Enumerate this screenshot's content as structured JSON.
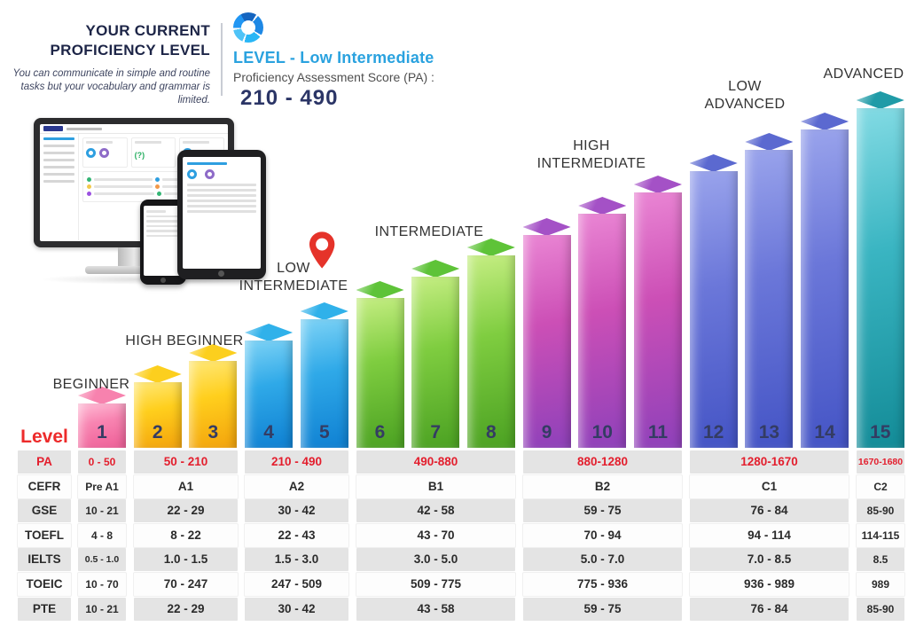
{
  "header": {
    "title_line1": "YOUR CURRENT",
    "title_line2": "PROFICIENCY LEVEL",
    "description": "You can communicate in simple and routine tasks but your vocabulary and grammar is limited.",
    "logo_icon": "donut-chart-icon",
    "level_label": "LEVEL - Low Intermediate",
    "score_label": "Proficiency Assessment Score (PA) :",
    "score_value": "210 - 490",
    "accent_blue": "#2aa2df",
    "score_navy": "#2b3566"
  },
  "chart_data": {
    "type": "bar",
    "title": "Proficiency level staircase, levels 1-15",
    "categories": [
      "1",
      "2",
      "3",
      "4",
      "5",
      "6",
      "7",
      "8",
      "9",
      "10",
      "11",
      "12",
      "13",
      "14",
      "15"
    ],
    "values": [
      1,
      2,
      3,
      4,
      5,
      6,
      7,
      8,
      9,
      10,
      11,
      12,
      13,
      14,
      15
    ],
    "ylabel": "",
    "xlabel": "Level",
    "legend": "none",
    "grid": false,
    "current_level_band": "LOW INTERMEDIATE",
    "marker_icon": "location-pin-icon",
    "marker_color": "#e5332a",
    "bands": [
      {
        "label_lines": [
          "BEGINNER"
        ],
        "levels": [
          1
        ],
        "pa_range": "0 - 50",
        "colors": {
          "l": "#ffbcd6",
          "m": "#f884b1",
          "d": "#ee5e97",
          "top": "#f782ae"
        }
      },
      {
        "label_lines": [
          "HIGH BEGINNER"
        ],
        "levels": [
          2,
          3
        ],
        "pa_range": "50 - 210",
        "colors": {
          "l": "#ffe878",
          "m": "#ffcf1d",
          "d": "#f3a30c",
          "top": "#fccf1e"
        }
      },
      {
        "label_lines": [
          "LOW",
          "INTERMEDIATE"
        ],
        "levels": [
          4,
          5
        ],
        "pa_range": "210 - 490",
        "marker": true,
        "colors": {
          "l": "#7ed3f6",
          "m": "#2fa9e8",
          "d": "#0f80d2",
          "top": "#30b1ea"
        }
      },
      {
        "label_lines": [
          "INTERMEDIATE"
        ],
        "levels": [
          6,
          7,
          8
        ],
        "pa_range": "490-880",
        "colors": {
          "l": "#c6ee83",
          "m": "#7fcd40",
          "d": "#4ba122",
          "top": "#5ec338"
        }
      },
      {
        "label_lines": [
          "HIGH",
          "INTERMEDIATE"
        ],
        "levels": [
          9,
          10,
          11
        ],
        "pa_range": "880-1280",
        "colors": {
          "l": "#ea86d4",
          "m": "#cc4fb6",
          "d": "#8e41ba",
          "top": "#a451c6"
        }
      },
      {
        "label_lines": [
          "LOW",
          "ADVANCED"
        ],
        "levels": [
          12,
          13,
          14
        ],
        "pa_range": "1280-1670",
        "colors": {
          "l": "#9aa4ec",
          "m": "#6b77d9",
          "d": "#4454c5",
          "top": "#5b69d0"
        }
      },
      {
        "label_lines": [
          "ADVANCED"
        ],
        "levels": [
          15
        ],
        "pa_range": "1670-1680",
        "colors": {
          "l": "#83dbe4",
          "m": "#3ab5c2",
          "d": "#138b97",
          "top": "#1f9ba7"
        }
      }
    ]
  },
  "table": {
    "level_label": "Level",
    "pa_color": "#e31e2d",
    "rows": [
      {
        "label": "PA",
        "red": true,
        "values": [
          "0 - 50",
          "50 - 210",
          "210 - 490",
          "490-880",
          "880-1280",
          "1280-1670",
          "1670-1680"
        ]
      },
      {
        "label": "CEFR",
        "values": [
          "Pre A1",
          "A1",
          "A2",
          "B1",
          "B2",
          "C1",
          "C2"
        ]
      },
      {
        "label": "GSE",
        "values": [
          "10 - 21",
          "22 - 29",
          "30 - 42",
          "42 - 58",
          "59 - 75",
          "76 - 84",
          "85-90"
        ]
      },
      {
        "label": "TOEFL",
        "values": [
          "4 - 8",
          "8 - 22",
          "22 - 43",
          "43 - 70",
          "70 - 94",
          "94 - 114",
          "114-115"
        ]
      },
      {
        "label": "IELTS",
        "values": [
          "0.5 - 1.0",
          "1.0 - 1.5",
          "1.5 - 3.0",
          "3.0 - 5.0",
          "5.0 - 7.0",
          "7.0 - 8.5",
          "8.5"
        ]
      },
      {
        "label": "TOEIC",
        "values": [
          "10 - 70",
          "70 - 247",
          "247 - 509",
          "509 - 775",
          "775 - 936",
          "936 - 989",
          "989"
        ]
      },
      {
        "label": "PTE",
        "values": [
          "10 - 21",
          "22 - 29",
          "30 - 42",
          "43 - 58",
          "59 - 75",
          "76 - 84",
          "85-90"
        ]
      }
    ]
  }
}
